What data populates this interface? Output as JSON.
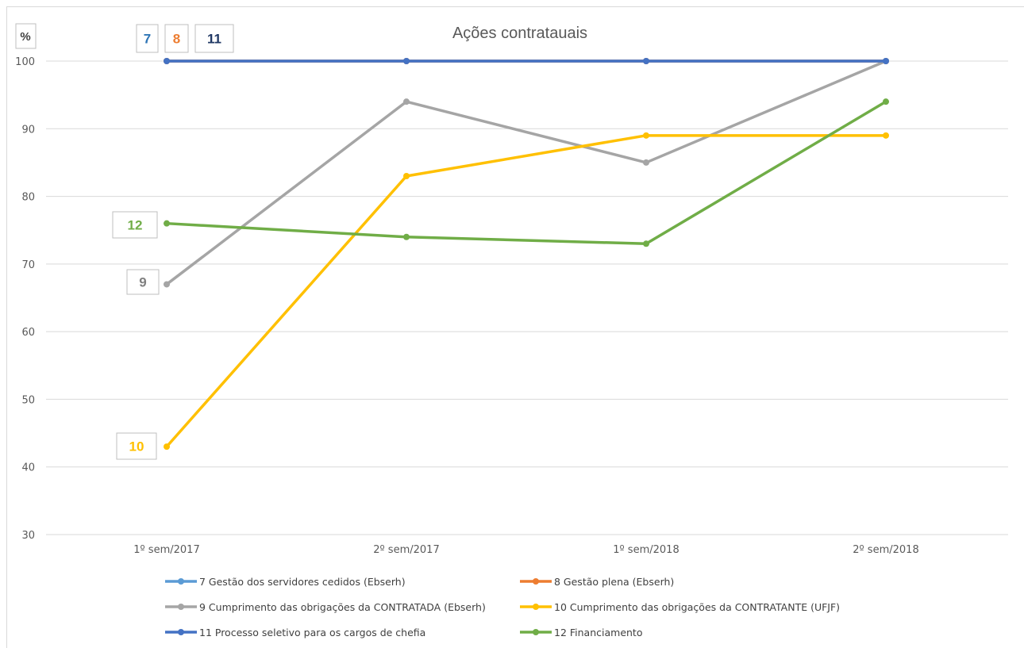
{
  "chart_data": {
    "type": "line",
    "title": "Ações contratauais",
    "ylabel": "%",
    "xlabel": "",
    "ylim": [
      30,
      100
    ],
    "yticks": [
      30,
      40,
      50,
      60,
      70,
      80,
      90,
      100
    ],
    "categories": [
      "1º sem/2017",
      "2º sem/2017",
      "1º sem/2018",
      "2º sem/2018"
    ],
    "grid": "horizontal",
    "legend_position": "bottom",
    "series": [
      {
        "name": "7 Gestão dos servidores cedidos (Ebserh)",
        "color": "#5b9bd5",
        "values": [
          100,
          100,
          100,
          100
        ],
        "label": "7",
        "label_color": "#2e75b6"
      },
      {
        "name": "8 Gestão plena (Ebserh)",
        "color": "#ed7d31",
        "values": [
          100,
          100,
          100,
          100
        ],
        "label": "8",
        "label_color": "#ed7d31"
      },
      {
        "name": "9 Cumprimento das obrigações da CONTRATADA (Ebserh)",
        "color": "#a5a5a5",
        "values": [
          67,
          94,
          85,
          100
        ],
        "label": "9",
        "label_color": "#7f7f7f"
      },
      {
        "name": "10 Cumprimento das obrigações da CONTRATANTE (UFJF)",
        "color": "#ffc000",
        "values": [
          43,
          83,
          89,
          89
        ],
        "label": "10",
        "label_color": "#ffc000"
      },
      {
        "name": "11 Processo seletivo para os cargos de chefia",
        "color": "#4472c4",
        "values": [
          100,
          100,
          100,
          100
        ],
        "label": "11",
        "label_color": "#203864"
      },
      {
        "name": "12 Financiamento",
        "color": "#70ad47",
        "values": [
          76,
          74,
          73,
          94
        ],
        "label": "12",
        "label_color": "#70ad47"
      }
    ]
  }
}
